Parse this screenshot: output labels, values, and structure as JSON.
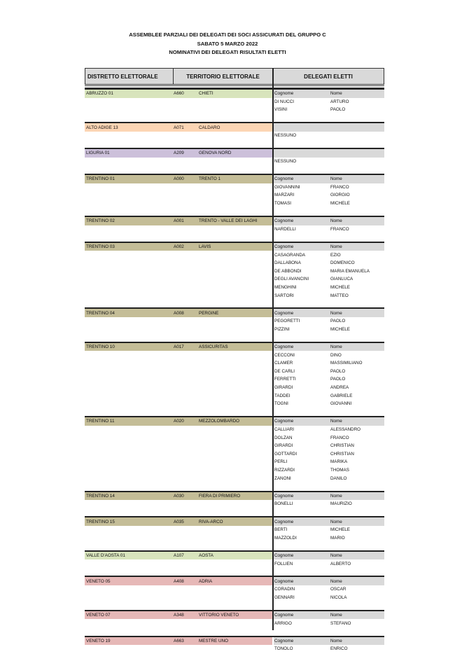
{
  "titles": [
    "ASSEMBLEE PARZIALI DEI DELEGATI DEI SOCI ASSICURATI DEL GRUPPO C",
    "SABATO 5 MARZO 2022",
    "NOMINATIVI DEI DELEGATI RISULTATI ELETTI"
  ],
  "header": {
    "distretto": "DISTRETTO ELETTORALE",
    "territorio": "TERRITORIO ELETTORALE",
    "delegati": "DELEGATI ELETTI"
  },
  "labels": {
    "cognome": "Cognome",
    "nome": "Nome",
    "none": "NESSUNO"
  },
  "colors": {
    "green": "#d8e4bc",
    "orange": "#fcd5b4",
    "purple": "#ccc0da",
    "tan": "#c4bd97",
    "red": "#e6b8b7",
    "grey": "#d9d9d9"
  },
  "groups": [
    {
      "distretto": "ABRUZZO 01",
      "code": "A660",
      "territorio": "CHIETI",
      "color": "#d8e4bc",
      "delegati": [
        [
          "DI NUCCI",
          "ARTURO"
        ],
        [
          "VISINI",
          "PAOLO"
        ]
      ]
    },
    {
      "distretto": "ALTO ADIGE 13",
      "code": "A071",
      "territorio": "CALDARO",
      "color": "#fcd5b4",
      "delegati": []
    },
    {
      "distretto": "LIGURIA 01",
      "code": "A209",
      "territorio": "GENOVA NORD",
      "color": "#ccc0da",
      "delegati": []
    },
    {
      "distretto": "TRENTINO 01",
      "code": "A000",
      "territorio": "TRENTO 1",
      "color": "#c4bd97",
      "delegati": [
        [
          "GIOVANNINI",
          "FRANCO"
        ],
        [
          "MARZARI",
          "GIORGIO"
        ],
        [
          "TOMASI",
          "MICHELE"
        ]
      ]
    },
    {
      "distretto": "TRENTINO 02",
      "code": "A001",
      "territorio": "TRENTO - VALLE DEI LAGHI",
      "color": "#c4bd97",
      "delegati": [
        [
          "NARDELLI",
          "FRANCO"
        ]
      ]
    },
    {
      "distretto": "TRENTINO 03",
      "code": "A002",
      "territorio": "LAVIS",
      "color": "#c4bd97",
      "delegati": [
        [
          "CASAGRANDA",
          "EZIO"
        ],
        [
          "DALLABONA",
          "DOMENICO"
        ],
        [
          "DE ABBONDI",
          "MARIA EMANUELA"
        ],
        [
          "DEGLI AVANCINI",
          "GIANLUCA"
        ],
        [
          "MENGHINI",
          "MICHELE"
        ],
        [
          "SARTORI",
          "MATTEO"
        ]
      ]
    },
    {
      "distretto": "TRENTINO 04",
      "code": "A008",
      "territorio": "PERGINE",
      "color": "#c4bd97",
      "delegati": [
        [
          "PEGORETTI",
          "PAOLO"
        ],
        [
          "PIZZINI",
          "MICHELE"
        ]
      ]
    },
    {
      "distretto": "TRENTINO 10",
      "code": "A017",
      "territorio": "ASSICURITAS",
      "color": "#c4bd97",
      "delegati": [
        [
          "CECCONI",
          "DINO"
        ],
        [
          "CLAMER",
          "MASSIMILIANO"
        ],
        [
          "DE CARLI",
          "PAOLO"
        ],
        [
          "FERRETTI",
          "PAOLO"
        ],
        [
          "GIRARDI",
          "ANDREA"
        ],
        [
          "TADDEI",
          "GABRIELE"
        ],
        [
          "TOGNI",
          "GIOVANNI"
        ]
      ]
    },
    {
      "distretto": "TRENTINO 11",
      "code": "A020",
      "territorio": "MEZZOLOMBARDO",
      "color": "#c4bd97",
      "delegati": [
        [
          "CALLIARI",
          "ALESSANDRO"
        ],
        [
          "DOLZAN",
          "FRANCO"
        ],
        [
          "GIRARDI",
          "CHRISTIAN"
        ],
        [
          "GOTTARDI",
          "CHRISTIAN"
        ],
        [
          "PERLI",
          "MARIKA"
        ],
        [
          "RIZZARDI",
          "THOMAS"
        ],
        [
          "ZANONI",
          "DANILO"
        ]
      ]
    },
    {
      "distretto": "TRENTINO 14",
      "code": "A030",
      "territorio": "FIERA DI PRIMIERO",
      "color": "#c4bd97",
      "delegati": [
        [
          "BONELLI",
          "MAURIZIO"
        ]
      ]
    },
    {
      "distretto": "TRENTINO 15",
      "code": "A035",
      "territorio": "RIVA-ARCO",
      "color": "#c4bd97",
      "delegati": [
        [
          "BERTI",
          "MICHELE"
        ],
        [
          "MAZZOLDI",
          "MARIO"
        ]
      ]
    },
    {
      "distretto": "VALLE D'AOSTA 01",
      "code": "A107",
      "territorio": "AOSTA",
      "color": "#d8e4bc",
      "delegati": [
        [
          "FOLLIEN",
          "ALBERTO"
        ]
      ]
    },
    {
      "distretto": "VENETO 05",
      "code": "A408",
      "territorio": "ADRIA",
      "color": "#e6b8b7",
      "delegati": [
        [
          "CORADIN",
          "OSCAR"
        ],
        [
          "GENNARI",
          "NICOLA"
        ]
      ]
    },
    {
      "distretto": "VENETO 07",
      "code": "A348",
      "territorio": "VITTORIO VENETO",
      "color": "#e6b8b7",
      "delegati": [
        [
          "ARRIGO",
          "STEFANO"
        ]
      ]
    },
    {
      "distretto": "VENETO 19",
      "code": "A663",
      "territorio": "MESTRE UNO",
      "color": "#e6b8b7",
      "delegati": [
        [
          "TONOLO",
          "ENRICO"
        ]
      ]
    }
  ]
}
